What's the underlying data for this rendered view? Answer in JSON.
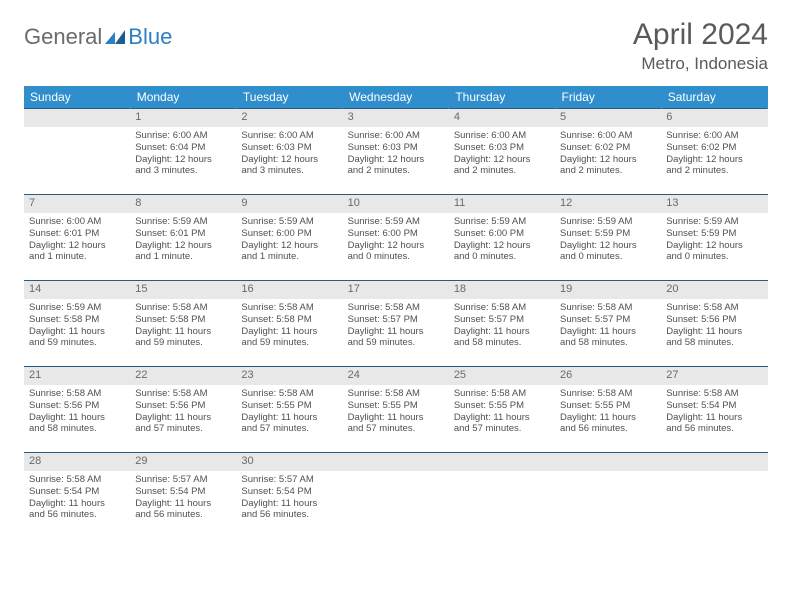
{
  "logo": {
    "text1": "General",
    "text2": "Blue",
    "text1_color": "#6b6b6b",
    "text2_color": "#2b7fc3"
  },
  "title": "April 2024",
  "location": "Metro, Indonesia",
  "colors": {
    "header_bg": "#2f8ecb",
    "header_text": "#ffffff",
    "daynum_bg": "#e8e8e8",
    "daynum_text": "#6a6a6a",
    "cell_border": "#2b5a80",
    "body_text": "#505050",
    "title_text": "#5a5a5a"
  },
  "weekdays": [
    "Sunday",
    "Monday",
    "Tuesday",
    "Wednesday",
    "Thursday",
    "Friday",
    "Saturday"
  ],
  "weeks": [
    [
      {
        "n": "",
        "l": []
      },
      {
        "n": "1",
        "l": [
          "Sunrise: 6:00 AM",
          "Sunset: 6:04 PM",
          "Daylight: 12 hours",
          "and 3 minutes."
        ]
      },
      {
        "n": "2",
        "l": [
          "Sunrise: 6:00 AM",
          "Sunset: 6:03 PM",
          "Daylight: 12 hours",
          "and 3 minutes."
        ]
      },
      {
        "n": "3",
        "l": [
          "Sunrise: 6:00 AM",
          "Sunset: 6:03 PM",
          "Daylight: 12 hours",
          "and 2 minutes."
        ]
      },
      {
        "n": "4",
        "l": [
          "Sunrise: 6:00 AM",
          "Sunset: 6:03 PM",
          "Daylight: 12 hours",
          "and 2 minutes."
        ]
      },
      {
        "n": "5",
        "l": [
          "Sunrise: 6:00 AM",
          "Sunset: 6:02 PM",
          "Daylight: 12 hours",
          "and 2 minutes."
        ]
      },
      {
        "n": "6",
        "l": [
          "Sunrise: 6:00 AM",
          "Sunset: 6:02 PM",
          "Daylight: 12 hours",
          "and 2 minutes."
        ]
      }
    ],
    [
      {
        "n": "7",
        "l": [
          "Sunrise: 6:00 AM",
          "Sunset: 6:01 PM",
          "Daylight: 12 hours",
          "and 1 minute."
        ]
      },
      {
        "n": "8",
        "l": [
          "Sunrise: 5:59 AM",
          "Sunset: 6:01 PM",
          "Daylight: 12 hours",
          "and 1 minute."
        ]
      },
      {
        "n": "9",
        "l": [
          "Sunrise: 5:59 AM",
          "Sunset: 6:00 PM",
          "Daylight: 12 hours",
          "and 1 minute."
        ]
      },
      {
        "n": "10",
        "l": [
          "Sunrise: 5:59 AM",
          "Sunset: 6:00 PM",
          "Daylight: 12 hours",
          "and 0 minutes."
        ]
      },
      {
        "n": "11",
        "l": [
          "Sunrise: 5:59 AM",
          "Sunset: 6:00 PM",
          "Daylight: 12 hours",
          "and 0 minutes."
        ]
      },
      {
        "n": "12",
        "l": [
          "Sunrise: 5:59 AM",
          "Sunset: 5:59 PM",
          "Daylight: 12 hours",
          "and 0 minutes."
        ]
      },
      {
        "n": "13",
        "l": [
          "Sunrise: 5:59 AM",
          "Sunset: 5:59 PM",
          "Daylight: 12 hours",
          "and 0 minutes."
        ]
      }
    ],
    [
      {
        "n": "14",
        "l": [
          "Sunrise: 5:59 AM",
          "Sunset: 5:58 PM",
          "Daylight: 11 hours",
          "and 59 minutes."
        ]
      },
      {
        "n": "15",
        "l": [
          "Sunrise: 5:58 AM",
          "Sunset: 5:58 PM",
          "Daylight: 11 hours",
          "and 59 minutes."
        ]
      },
      {
        "n": "16",
        "l": [
          "Sunrise: 5:58 AM",
          "Sunset: 5:58 PM",
          "Daylight: 11 hours",
          "and 59 minutes."
        ]
      },
      {
        "n": "17",
        "l": [
          "Sunrise: 5:58 AM",
          "Sunset: 5:57 PM",
          "Daylight: 11 hours",
          "and 59 minutes."
        ]
      },
      {
        "n": "18",
        "l": [
          "Sunrise: 5:58 AM",
          "Sunset: 5:57 PM",
          "Daylight: 11 hours",
          "and 58 minutes."
        ]
      },
      {
        "n": "19",
        "l": [
          "Sunrise: 5:58 AM",
          "Sunset: 5:57 PM",
          "Daylight: 11 hours",
          "and 58 minutes."
        ]
      },
      {
        "n": "20",
        "l": [
          "Sunrise: 5:58 AM",
          "Sunset: 5:56 PM",
          "Daylight: 11 hours",
          "and 58 minutes."
        ]
      }
    ],
    [
      {
        "n": "21",
        "l": [
          "Sunrise: 5:58 AM",
          "Sunset: 5:56 PM",
          "Daylight: 11 hours",
          "and 58 minutes."
        ]
      },
      {
        "n": "22",
        "l": [
          "Sunrise: 5:58 AM",
          "Sunset: 5:56 PM",
          "Daylight: 11 hours",
          "and 57 minutes."
        ]
      },
      {
        "n": "23",
        "l": [
          "Sunrise: 5:58 AM",
          "Sunset: 5:55 PM",
          "Daylight: 11 hours",
          "and 57 minutes."
        ]
      },
      {
        "n": "24",
        "l": [
          "Sunrise: 5:58 AM",
          "Sunset: 5:55 PM",
          "Daylight: 11 hours",
          "and 57 minutes."
        ]
      },
      {
        "n": "25",
        "l": [
          "Sunrise: 5:58 AM",
          "Sunset: 5:55 PM",
          "Daylight: 11 hours",
          "and 57 minutes."
        ]
      },
      {
        "n": "26",
        "l": [
          "Sunrise: 5:58 AM",
          "Sunset: 5:55 PM",
          "Daylight: 11 hours",
          "and 56 minutes."
        ]
      },
      {
        "n": "27",
        "l": [
          "Sunrise: 5:58 AM",
          "Sunset: 5:54 PM",
          "Daylight: 11 hours",
          "and 56 minutes."
        ]
      }
    ],
    [
      {
        "n": "28",
        "l": [
          "Sunrise: 5:58 AM",
          "Sunset: 5:54 PM",
          "Daylight: 11 hours",
          "and 56 minutes."
        ]
      },
      {
        "n": "29",
        "l": [
          "Sunrise: 5:57 AM",
          "Sunset: 5:54 PM",
          "Daylight: 11 hours",
          "and 56 minutes."
        ]
      },
      {
        "n": "30",
        "l": [
          "Sunrise: 5:57 AM",
          "Sunset: 5:54 PM",
          "Daylight: 11 hours",
          "and 56 minutes."
        ]
      },
      {
        "n": "",
        "l": []
      },
      {
        "n": "",
        "l": []
      },
      {
        "n": "",
        "l": []
      },
      {
        "n": "",
        "l": []
      }
    ]
  ]
}
